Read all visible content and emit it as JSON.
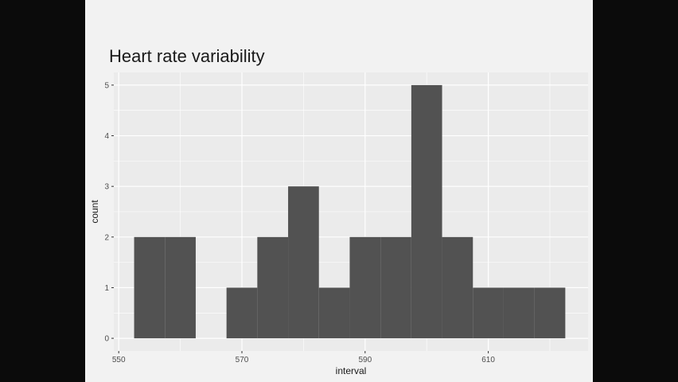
{
  "colors": {
    "slide_bg": "#f2f2f2",
    "panel_bg": "#ebebeb",
    "grid_major": "#ffffff",
    "bar_fill": "#525252",
    "text": "#1a1a1a",
    "tick_text": "#4d4d4d"
  },
  "chart_data": {
    "type": "bar",
    "title": "Heart rate variability",
    "xlabel": "interval",
    "ylabel": "count",
    "x_ticks": [
      550,
      570,
      590,
      610
    ],
    "y_ticks": [
      0,
      1,
      2,
      3,
      4,
      5
    ],
    "xlim": [
      549.2,
      626.2
    ],
    "ylim": [
      -0.25,
      5.25
    ],
    "grid": true,
    "bins": [
      {
        "start": 552.5,
        "end": 557.5,
        "count": 2
      },
      {
        "start": 557.5,
        "end": 562.5,
        "count": 2
      },
      {
        "start": 562.5,
        "end": 567.5,
        "count": 0
      },
      {
        "start": 567.5,
        "end": 572.5,
        "count": 1
      },
      {
        "start": 572.5,
        "end": 577.5,
        "count": 2
      },
      {
        "start": 577.5,
        "end": 582.5,
        "count": 3
      },
      {
        "start": 582.5,
        "end": 587.5,
        "count": 1
      },
      {
        "start": 587.5,
        "end": 592.5,
        "count": 2
      },
      {
        "start": 592.5,
        "end": 597.5,
        "count": 2
      },
      {
        "start": 597.5,
        "end": 602.5,
        "count": 5
      },
      {
        "start": 602.5,
        "end": 607.5,
        "count": 2
      },
      {
        "start": 607.5,
        "end": 612.5,
        "count": 1
      },
      {
        "start": 612.5,
        "end": 617.5,
        "count": 1
      },
      {
        "start": 617.5,
        "end": 622.5,
        "count": 1
      }
    ]
  }
}
